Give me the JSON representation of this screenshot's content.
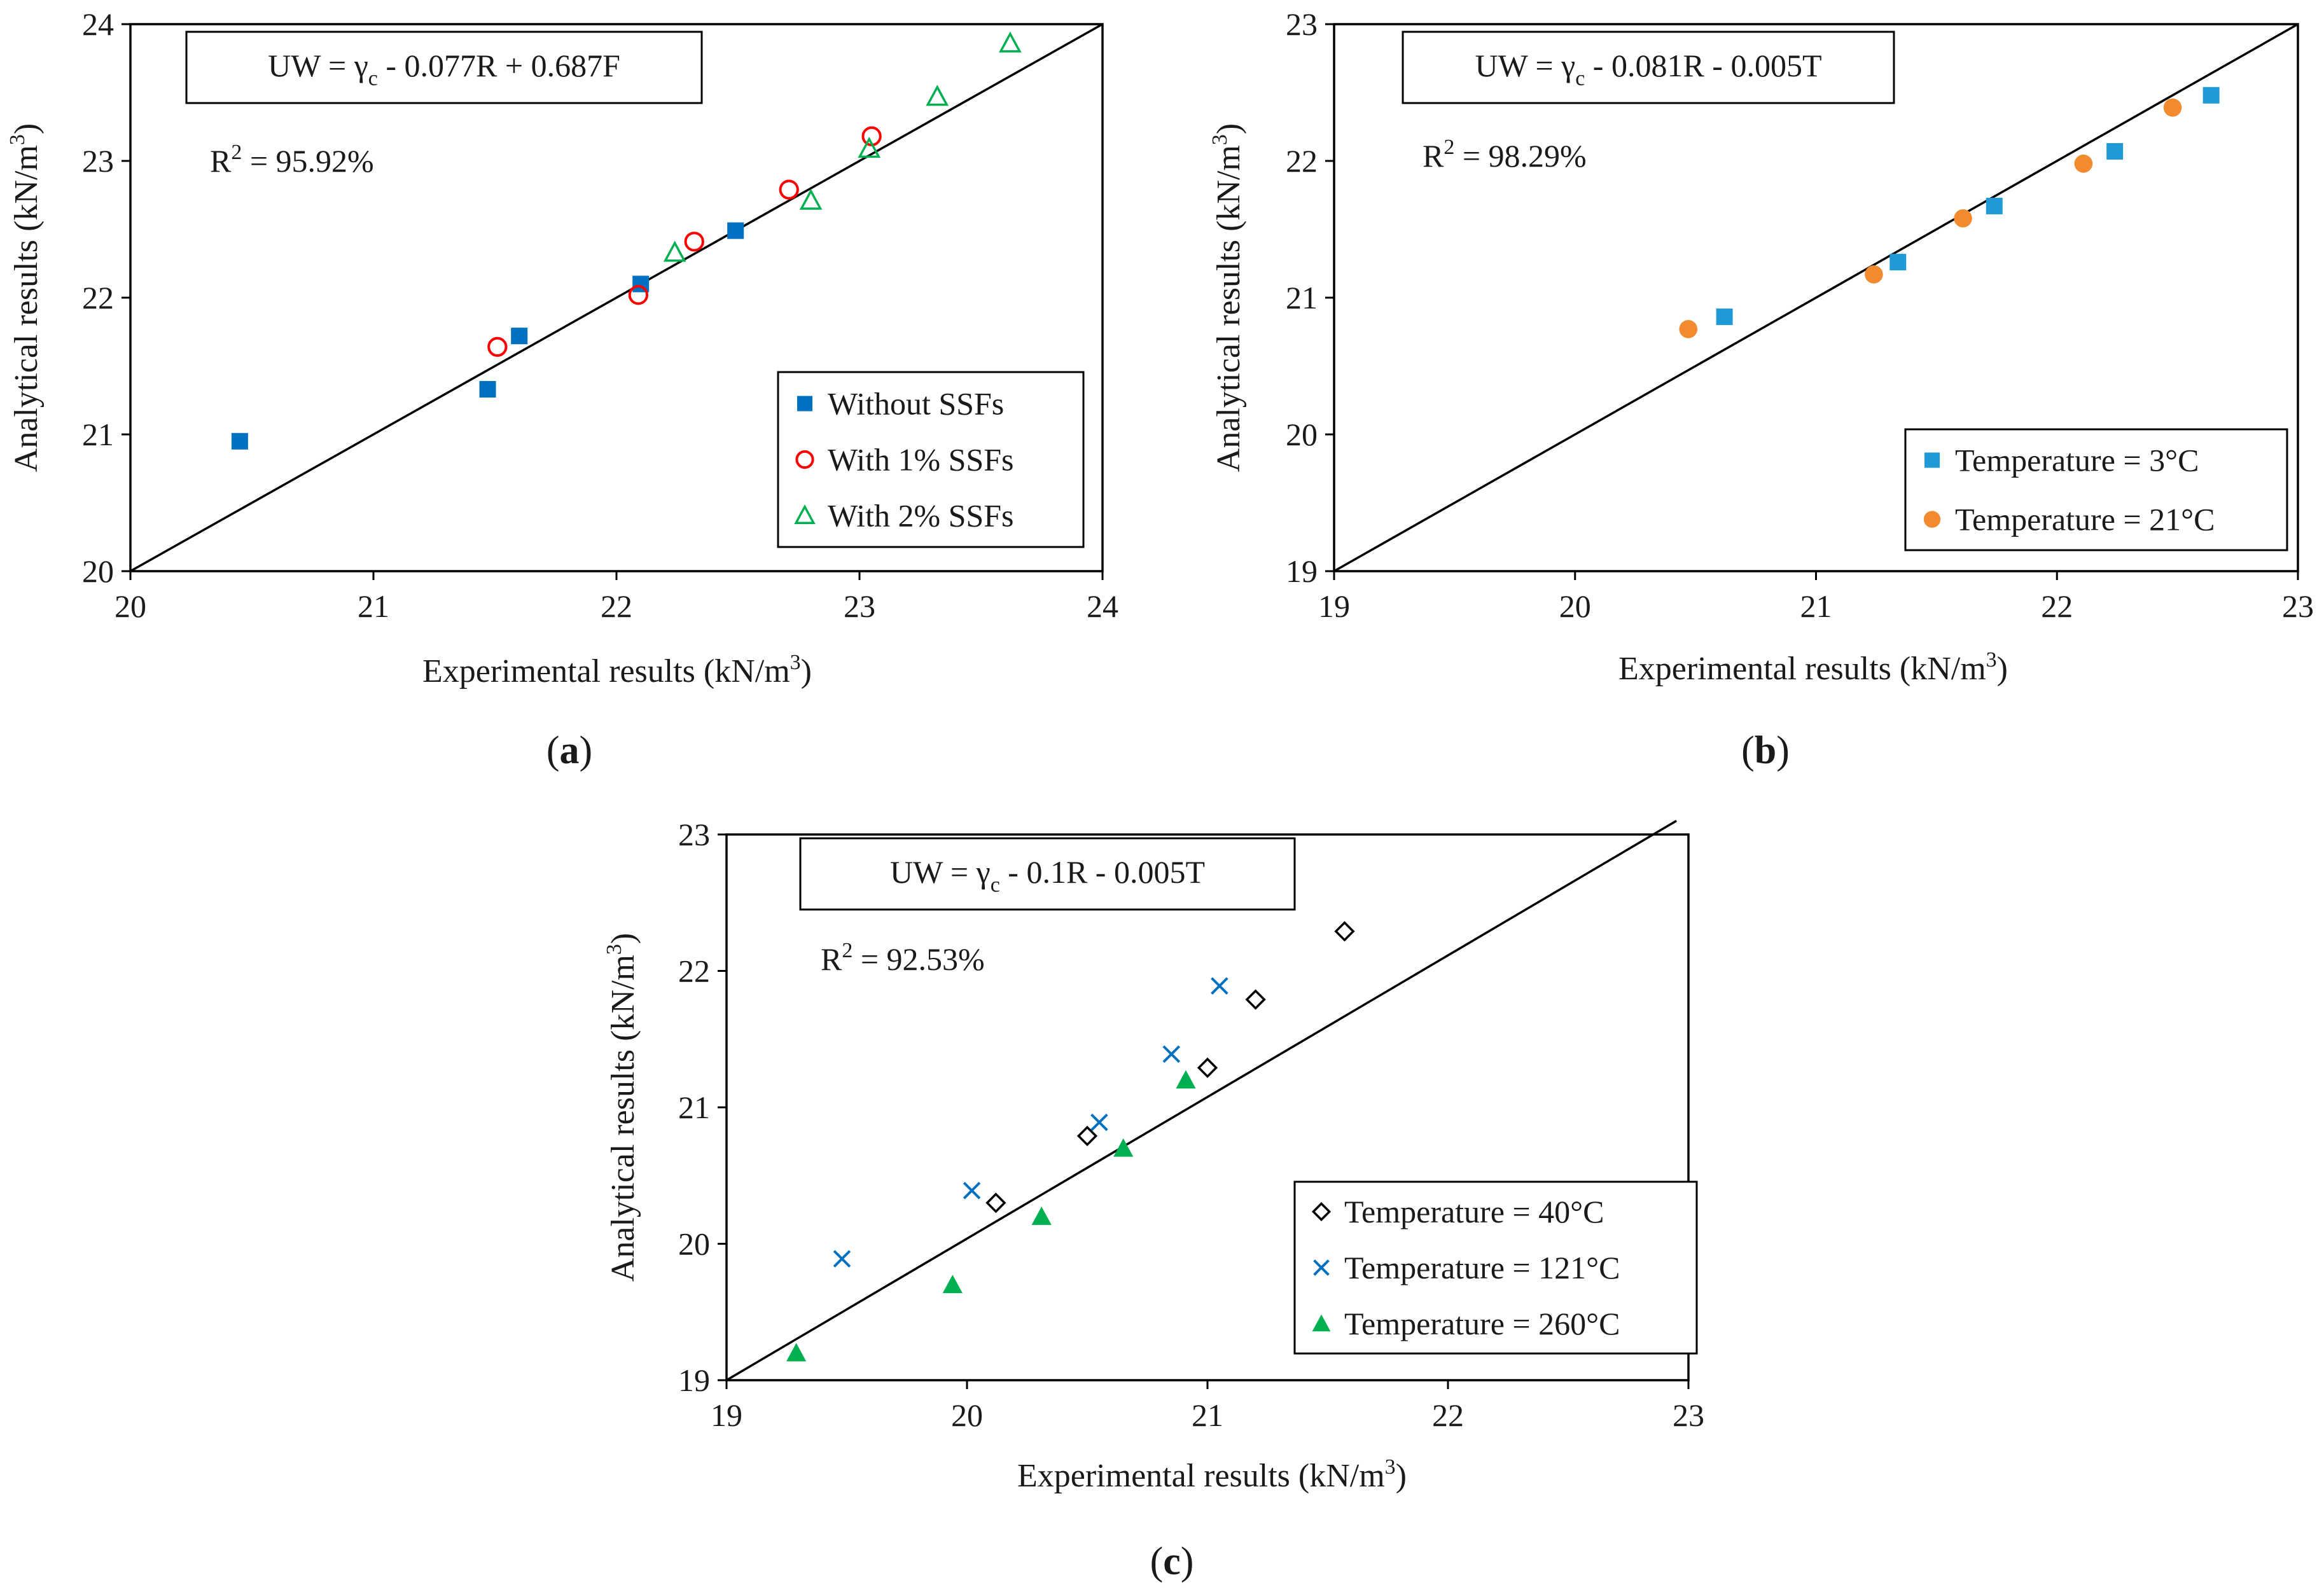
{
  "chart_data": [
    {
      "id": "a",
      "type": "scatter",
      "panel_label": "a",
      "equation": {
        "prefix": "UW = γ",
        "subscript": "c",
        "suffix": " - 0.077R + 0.687F"
      },
      "r2": {
        "prefix": "R",
        "sup": "2",
        "suffix": " = 95.92%"
      },
      "xlabel": "Experimental results (kN/m",
      "ylabel": "Analytical results (kN/m",
      "unit_sup": "3",
      "unit_close": ")",
      "xlim": [
        20,
        24
      ],
      "ylim": [
        20,
        24
      ],
      "xticks": [
        "20",
        "21",
        "22",
        "23",
        "24"
      ],
      "yticks": [
        "20",
        "21",
        "22",
        "23",
        "24"
      ],
      "reference_line": {
        "x": [
          20,
          24
        ],
        "y": [
          20,
          24
        ]
      },
      "legend_position": "bottom-right",
      "series": [
        {
          "name": "Without SSFs",
          "marker": "square-filled",
          "color": "#0070C0",
          "x": [
            20.45,
            21.47,
            21.6,
            22.1,
            22.49
          ],
          "y": [
            20.95,
            21.33,
            21.72,
            22.1,
            22.49
          ]
        },
        {
          "name": "With 1% SSFs",
          "marker": "circle-open",
          "color": "#FF0000",
          "x": [
            21.51,
            22.09,
            22.32,
            22.71,
            23.05
          ],
          "y": [
            21.64,
            22.02,
            22.41,
            22.79,
            23.18
          ]
        },
        {
          "name": "With 2% SSFs",
          "marker": "triangle-open",
          "color": "#00B050",
          "x": [
            22.24,
            22.8,
            23.04,
            23.32,
            23.62
          ],
          "y": [
            22.33,
            22.71,
            23.09,
            23.47,
            23.86
          ]
        }
      ]
    },
    {
      "id": "b",
      "type": "scatter",
      "panel_label": "b",
      "equation": {
        "prefix": "UW = γ",
        "subscript": "c",
        "suffix": " - 0.081R - 0.005T"
      },
      "r2": {
        "prefix": "R",
        "sup": "2",
        "suffix": " = 98.29%"
      },
      "xlabel": "Experimental results (kN/m",
      "ylabel": "Analytical results (kN/m",
      "unit_sup": "3",
      "unit_close": ")",
      "xlim": [
        19,
        23
      ],
      "ylim": [
        19,
        23
      ],
      "xticks": [
        "19",
        "20",
        "21",
        "22",
        "23"
      ],
      "yticks": [
        "19",
        "20",
        "21",
        "22",
        "23"
      ],
      "reference_line": {
        "x": [
          19,
          23
        ],
        "y": [
          19,
          23
        ]
      },
      "legend_position": "bottom-right",
      "series": [
        {
          "name": "Temperature = 3°C",
          "marker": "square-filled",
          "color": "#1F9AD6",
          "x": [
            20.62,
            21.34,
            21.74,
            22.24,
            22.64
          ],
          "y": [
            20.86,
            21.26,
            21.67,
            22.07,
            22.48
          ]
        },
        {
          "name": "Temperature = 21°C",
          "marker": "circle-filled",
          "color": "#F28A30",
          "x": [
            20.47,
            21.24,
            21.61,
            22.11,
            22.48
          ],
          "y": [
            20.77,
            21.17,
            21.58,
            21.98,
            22.39
          ]
        }
      ]
    },
    {
      "id": "c",
      "type": "scatter",
      "panel_label": "c",
      "equation": {
        "prefix": "UW = γ",
        "subscript": "c",
        "suffix": " - 0.1R - 0.005T"
      },
      "r2": {
        "prefix": "R",
        "sup": "2",
        "suffix": " = 92.53%"
      },
      "xlabel": "Experimental results (kN/m",
      "ylabel": "Analytical results (kN/m",
      "unit_sup": "3",
      "unit_close": ")",
      "xlim": [
        19,
        23
      ],
      "ylim": [
        19,
        23
      ],
      "xticks": [
        "19",
        "20",
        "21",
        "22",
        "23"
      ],
      "yticks": [
        "19",
        "20",
        "21",
        "22",
        "23"
      ],
      "reference_line": {
        "x": [
          19,
          22.95
        ],
        "y": [
          19,
          23.1
        ]
      },
      "legend_position": "bottom-right",
      "series": [
        {
          "name": "Temperature = 40°C",
          "marker": "diamond-open",
          "color": "#000000",
          "x": [
            20.12,
            20.5,
            21.0,
            21.2,
            21.57
          ],
          "y": [
            20.3,
            20.79,
            21.29,
            21.79,
            22.29
          ]
        },
        {
          "name": "Temperature = 121°C",
          "marker": "x",
          "color": "#0070C0",
          "x": [
            19.48,
            20.02,
            20.55,
            20.85,
            21.05
          ],
          "y": [
            19.89,
            20.39,
            20.89,
            21.39,
            21.89
          ]
        },
        {
          "name": "Temperature = 260°C",
          "marker": "triangle-filled",
          "color": "#00B050",
          "x": [
            19.29,
            19.94,
            20.31,
            20.65,
            20.91
          ],
          "y": [
            19.2,
            19.7,
            20.2,
            20.7,
            21.2
          ]
        }
      ]
    }
  ]
}
